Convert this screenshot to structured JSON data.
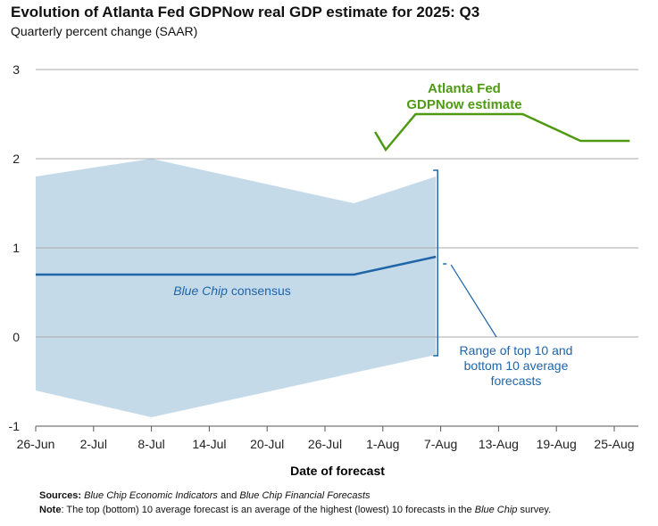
{
  "title": "Evolution of Atlanta Fed GDPNow real GDP estimate for 2025: Q3",
  "subtitle": "Quarterly percent change (SAAR)",
  "chart_data": {
    "type": "line",
    "title": "Evolution of Atlanta Fed GDPNow real GDP estimate for 2025: Q3",
    "xlabel": "Date of forecast",
    "ylabel": "Quarterly percent change (SAAR)",
    "ylim": [
      -1,
      3
    ],
    "yticks": [
      "-1",
      "0",
      "1",
      "2",
      "3"
    ],
    "x_unit": "days since 26-Jun",
    "xlim": [
      0,
      63
    ],
    "xticks": [
      {
        "label": "26-Jun",
        "day": 0
      },
      {
        "label": "2-Jul",
        "day": 6
      },
      {
        "label": "8-Jul",
        "day": 12
      },
      {
        "label": "14-Jul",
        "day": 18
      },
      {
        "label": "20-Jul",
        "day": 24
      },
      {
        "label": "26-Jul",
        "day": 30
      },
      {
        "label": "1-Aug",
        "day": 36
      },
      {
        "label": "7-Aug",
        "day": 42
      },
      {
        "label": "13-Aug",
        "day": 48
      },
      {
        "label": "19-Aug",
        "day": 54
      },
      {
        "label": "25-Aug",
        "day": 60
      }
    ],
    "grid": true,
    "series": [
      {
        "name": "Blue Chip consensus",
        "color": "#1f65a8",
        "points": [
          [
            0,
            0.7
          ],
          [
            33,
            0.7
          ],
          [
            41.5,
            0.9
          ]
        ]
      },
      {
        "name": "Range upper (top 10 average)",
        "color": "#c5dae9",
        "points": [
          [
            0,
            1.8
          ],
          [
            12,
            2.0
          ],
          [
            33,
            1.5
          ],
          [
            41.5,
            1.8
          ]
        ]
      },
      {
        "name": "Range lower (bottom 10 average)",
        "color": "#c5dae9",
        "points": [
          [
            0,
            -0.6
          ],
          [
            12,
            -0.9
          ],
          [
            41.5,
            -0.2
          ]
        ]
      },
      {
        "name": "Atlanta Fed GDPNow estimate",
        "color": "#4f9a12",
        "points": [
          [
            35.2,
            2.3
          ],
          [
            36.3,
            2.1
          ],
          [
            39.4,
            2.5
          ],
          [
            50.5,
            2.5
          ],
          [
            56.5,
            2.2
          ],
          [
            61.6,
            2.2
          ]
        ]
      }
    ],
    "annotations": {
      "gdpnow_line1": "Atlanta Fed",
      "gdpnow_line2": "GDPNow estimate",
      "consensus_italic": "Blue Chip",
      "consensus_rest": " consensus",
      "range_line1": "Range of top 10 and",
      "range_line2": "bottom 10 average",
      "range_line3": "forecasts"
    }
  },
  "notes": {
    "sources_label": "Sources:",
    "sources_1": "Blue Chip Economic Indicators",
    "sources_and": " and ",
    "sources_2": "Blue Chip Financial Forecasts",
    "note_label": "Note",
    "note_text": ": The top (bottom) 10 average forecast is an average of the highest (lowest) 10 forecasts in the ",
    "note_italic": "Blue Chip",
    "note_end": " survey."
  }
}
